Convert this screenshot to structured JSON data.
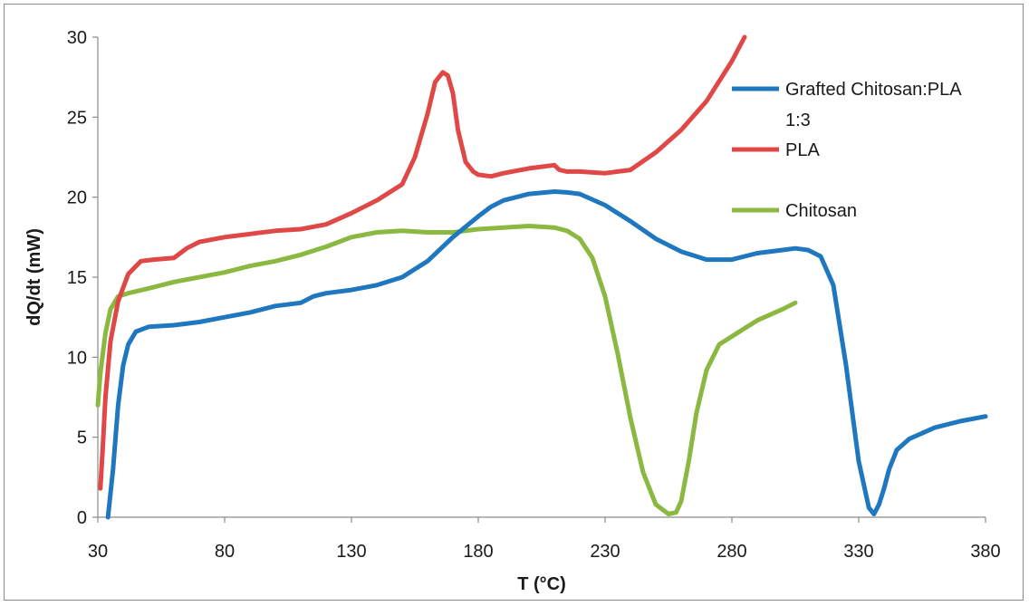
{
  "chart_data": {
    "type": "line",
    "title": "",
    "xlabel": "T (°C)",
    "ylabel": "dQ/dt (mW)",
    "xlim": [
      30,
      380
    ],
    "ylim": [
      0,
      30
    ],
    "x_ticks": [
      30,
      80,
      130,
      180,
      230,
      280,
      330,
      380
    ],
    "y_ticks": [
      0,
      5,
      10,
      15,
      20,
      25,
      30
    ],
    "x_tick_labels": [
      "30",
      "80",
      "130",
      "180",
      "230",
      "280",
      "330",
      "380"
    ],
    "y_tick_labels": [
      "0",
      "5",
      "10",
      "15",
      "20",
      "25",
      "30"
    ],
    "grid": false,
    "legend_position": "top-right",
    "series": [
      {
        "name": "Grafted Chitosan:PLA 1:3",
        "color": "#1f77bf",
        "x": [
          34,
          36,
          38,
          40,
          42,
          45,
          50,
          55,
          60,
          70,
          80,
          90,
          100,
          110,
          115,
          120,
          130,
          140,
          150,
          160,
          170,
          180,
          185,
          190,
          200,
          210,
          215,
          220,
          230,
          240,
          250,
          260,
          270,
          280,
          285,
          290,
          300,
          305,
          310,
          315,
          320,
          325,
          330,
          334,
          336,
          338,
          340,
          342,
          345,
          350,
          360,
          370,
          380
        ],
        "y": [
          0,
          3,
          7,
          9.5,
          10.8,
          11.6,
          11.9,
          11.95,
          12.0,
          12.2,
          12.5,
          12.8,
          13.2,
          13.4,
          13.8,
          14.0,
          14.2,
          14.5,
          15.0,
          16.0,
          17.5,
          18.8,
          19.4,
          19.8,
          20.2,
          20.35,
          20.3,
          20.2,
          19.5,
          18.5,
          17.4,
          16.6,
          16.1,
          16.1,
          16.3,
          16.5,
          16.7,
          16.8,
          16.7,
          16.3,
          14.5,
          9.5,
          3.5,
          0.6,
          0.2,
          0.8,
          1.8,
          3.0,
          4.2,
          4.9,
          5.6,
          6.0,
          6.3
        ]
      },
      {
        "name": "PLA",
        "color": "#e04848",
        "x": [
          31,
          32,
          33,
          35,
          38,
          42,
          47,
          52,
          60,
          65,
          70,
          80,
          90,
          100,
          110,
          120,
          130,
          140,
          150,
          155,
          160,
          163,
          166,
          168,
          170,
          172,
          175,
          178,
          180,
          185,
          190,
          200,
          210,
          212,
          215,
          220,
          230,
          240,
          250,
          260,
          270,
          280,
          285
        ],
        "y": [
          1.8,
          4.5,
          7.5,
          11,
          13.5,
          15.2,
          16.0,
          16.1,
          16.2,
          16.8,
          17.2,
          17.5,
          17.7,
          17.9,
          18.0,
          18.3,
          19.0,
          19.8,
          20.8,
          22.5,
          25.2,
          27.2,
          27.8,
          27.6,
          26.5,
          24.2,
          22.2,
          21.6,
          21.4,
          21.3,
          21.5,
          21.8,
          22.0,
          21.7,
          21.6,
          21.6,
          21.5,
          21.7,
          22.8,
          24.2,
          26.0,
          28.5,
          30.0
        ]
      },
      {
        "name": "Chitosan",
        "color": "#8ab840",
        "x": [
          30,
          31,
          33,
          35,
          38,
          42,
          50,
          60,
          70,
          80,
          90,
          100,
          110,
          120,
          130,
          140,
          150,
          160,
          170,
          180,
          190,
          200,
          210,
          215,
          220,
          225,
          230,
          235,
          240,
          245,
          250,
          255,
          258,
          260,
          263,
          266,
          270,
          275,
          280,
          285,
          290,
          300,
          305
        ],
        "y": [
          7.0,
          9.0,
          11.5,
          13.0,
          13.8,
          14.0,
          14.3,
          14.7,
          15.0,
          15.3,
          15.7,
          16.0,
          16.4,
          16.9,
          17.5,
          17.8,
          17.9,
          17.8,
          17.8,
          18.0,
          18.1,
          18.2,
          18.1,
          17.9,
          17.4,
          16.2,
          13.8,
          10.2,
          6.2,
          2.8,
          0.8,
          0.2,
          0.3,
          1.0,
          3.5,
          6.5,
          9.2,
          10.8,
          11.3,
          11.8,
          12.3,
          13.0,
          13.4
        ]
      }
    ]
  }
}
